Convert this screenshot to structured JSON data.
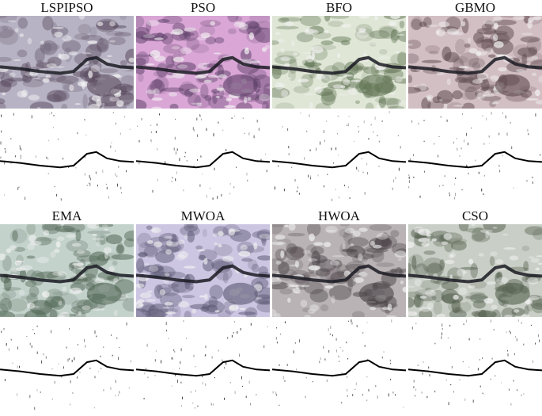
{
  "panels": [
    {
      "label": "LSPIPSO"
    },
    {
      "label": "PSO"
    },
    {
      "label": "BFO"
    },
    {
      "label": "GBMO"
    },
    {
      "label": "EMA"
    },
    {
      "label": "MWOA"
    },
    {
      "label": "HWOA"
    },
    {
      "label": "CSO"
    }
  ]
}
